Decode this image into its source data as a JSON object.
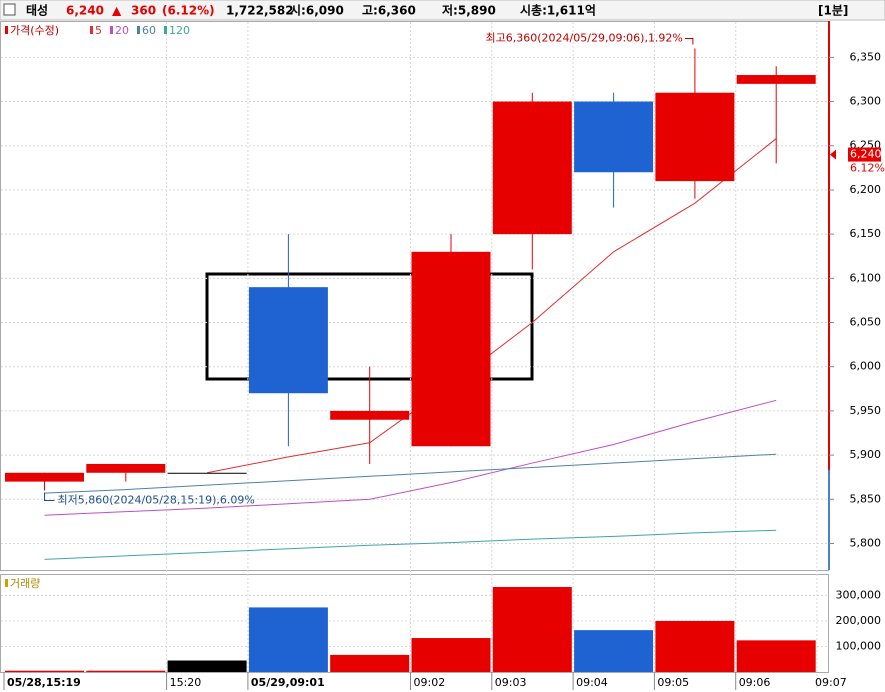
{
  "header": {
    "name": "태성",
    "price": "6,240",
    "arrow": "▲",
    "change": "360",
    "change_pct": "(6.12%)",
    "volume": "1,722,582",
    "open": "시:6,090",
    "high": "고:6,360",
    "low": "저:5,890",
    "market_cap": "시총:1,611억",
    "interval": "[1분]"
  },
  "chart_data": {
    "type": "candlestick",
    "categories": [
      "05/28,15:19",
      null,
      "15:20",
      "05/29,09:01",
      null,
      "09:02",
      "09:03",
      "09:04",
      "09:05",
      "09:06"
    ],
    "next_category": "09:07",
    "legend_price": "가격(수정)",
    "open": [
      5870,
      5880,
      5880,
      6090,
      5940,
      5910,
      6150,
      6300,
      6210,
      6320
    ],
    "high": [
      5880,
      5890,
      5880,
      6150,
      6000,
      6150,
      6310,
      6310,
      6360,
      6340
    ],
    "low": [
      5860,
      5870,
      5880,
      5910,
      5890,
      5910,
      6110,
      6180,
      6190,
      6230
    ],
    "close": [
      5880,
      5890,
      5880,
      5970,
      5950,
      6130,
      6300,
      6220,
      6310,
      6330
    ],
    "up_color": "#e60000",
    "down_color": "#1f63d2",
    "series": [
      {
        "name": "5",
        "color": "#e03030",
        "values": [
          null,
          null,
          5880,
          5898,
          5914,
          5980,
          6050,
          6130,
          6185,
          6258
        ]
      },
      {
        "name": "20",
        "color": "#c050c0",
        "values": [
          5832,
          5836,
          5840,
          5845,
          5850,
          5869,
          5891,
          5912,
          5938,
          5962
        ]
      },
      {
        "name": "60",
        "color": "#5080a8",
        "values": [
          5857,
          5861,
          5866,
          5871,
          5876,
          5881,
          5886,
          5891,
          5896,
          5901
        ]
      },
      {
        "name": "120",
        "color": "#3aa8a0",
        "values": [
          5782,
          5786,
          5790,
          5794,
          5798,
          5801,
          5805,
          5808,
          5812,
          5815
        ]
      }
    ],
    "ylim": [
      5770,
      6390
    ],
    "yticks": [
      {
        "value": 5800,
        "label": "5,800"
      },
      {
        "value": 5850,
        "label": "5,850"
      },
      {
        "value": 5900,
        "label": "5,900"
      },
      {
        "value": 5950,
        "label": "5,950"
      },
      {
        "value": 6000,
        "label": "6,000"
      },
      {
        "value": 6050,
        "label": "6,050"
      },
      {
        "value": 6100,
        "label": "6,100"
      },
      {
        "value": 6150,
        "label": "6,150"
      },
      {
        "value": 6200,
        "label": "6,200"
      },
      {
        "value": 6250,
        "label": "6,250"
      },
      {
        "value": 6300,
        "label": "6,300"
      },
      {
        "value": 6350,
        "label": "6,350"
      }
    ],
    "current": {
      "value": 6240,
      "label": "6,240",
      "pct": "6.12%"
    },
    "max_annotation": "최고6,360(2024/05/29,09:06),1.92%",
    "min_annotation": "최저5,860(2024/05/28,15:19),6.09%",
    "volume": {
      "title": "거래량",
      "values": [
        5000,
        5000,
        45000,
        253000,
        67000,
        133000,
        333000,
        164000,
        200000,
        124000
      ],
      "colors": [
        "#e60000",
        "#e60000",
        "#000000",
        "#1f63d2",
        "#e60000",
        "#e60000",
        "#e60000",
        "#1f63d2",
        "#e60000",
        "#e60000"
      ],
      "ylim": [
        0,
        380000
      ],
      "yticks": [
        {
          "value": 100000,
          "label": "100,000"
        },
        {
          "value": 200000,
          "label": "200,000"
        },
        {
          "value": 300000,
          "label": "300,000"
        }
      ]
    },
    "grid": true
  }
}
